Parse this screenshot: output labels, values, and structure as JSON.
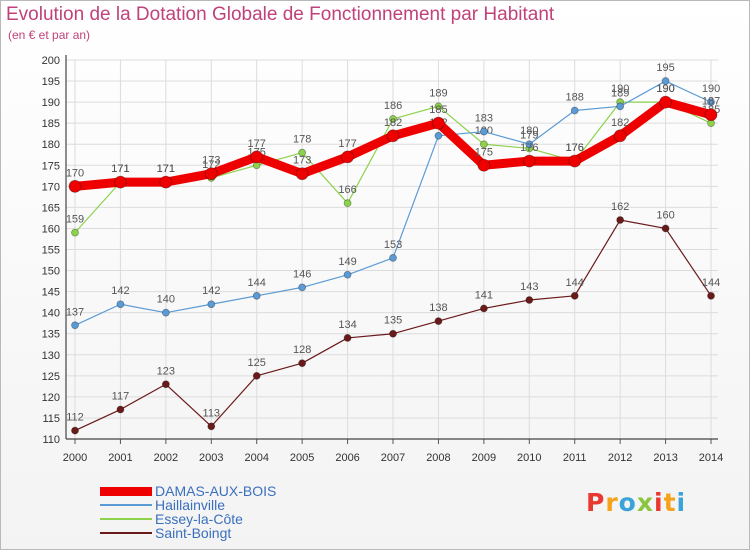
{
  "title": "Evolution de la Dotation Globale de Fonctionnement par Habitant",
  "subtitle": "(en € et par an)",
  "logo": {
    "text": "Proxiti",
    "colors": [
      "#e8382f",
      "#f4a31a",
      "#3aa3d8",
      "#8cc63f",
      "#e8382f",
      "#f4a31a",
      "#3aa3d8"
    ]
  },
  "chart_data": {
    "type": "line",
    "x": [
      "2000",
      "2001",
      "2002",
      "2003",
      "2004",
      "2005",
      "2006",
      "2007",
      "2008",
      "2009",
      "2010",
      "2011",
      "2012",
      "2013",
      "2014"
    ],
    "ylim": [
      110,
      200
    ],
    "yticks": [
      110,
      115,
      120,
      125,
      130,
      135,
      140,
      145,
      150,
      155,
      160,
      165,
      170,
      175,
      180,
      185,
      190,
      195,
      200
    ],
    "grid": true,
    "legend_position": "bottom-left",
    "series": [
      {
        "name": "Saint-Boingt",
        "color": "#6b1a1a",
        "values": [
          112,
          117,
          123,
          113,
          125,
          128,
          134,
          135,
          138,
          141,
          143,
          144,
          162,
          160,
          144
        ]
      },
      {
        "name": "Essey-la-Côte",
        "color": "#8cd24a",
        "values": [
          159,
          171,
          171,
          172,
          175,
          178,
          166,
          186,
          189,
          180,
          179,
          176,
          190,
          190,
          185
        ]
      },
      {
        "name": "Haillainville",
        "color": "#5b9bd5",
        "values": [
          137,
          142,
          140,
          142,
          144,
          146,
          149,
          153,
          182,
          183,
          180,
          188,
          189,
          195,
          190
        ]
      },
      {
        "name": "DAMAS-AUX-BOIS",
        "color": "#ee0000",
        "values": [
          170,
          171,
          171,
          173,
          177,
          173,
          177,
          182,
          185,
          175,
          176,
          176,
          182,
          190,
          187
        ]
      }
    ]
  },
  "legend": [
    {
      "label": "DAMAS-AUX-BOIS",
      "color": "#ee0000",
      "thickness": 9
    },
    {
      "label": "Haillainville",
      "color": "#5b9bd5",
      "thickness": 2
    },
    {
      "label": "Essey-la-Côte",
      "color": "#8cd24a",
      "thickness": 2
    },
    {
      "label": "Saint-Boingt",
      "color": "#6b1a1a",
      "thickness": 2
    }
  ]
}
